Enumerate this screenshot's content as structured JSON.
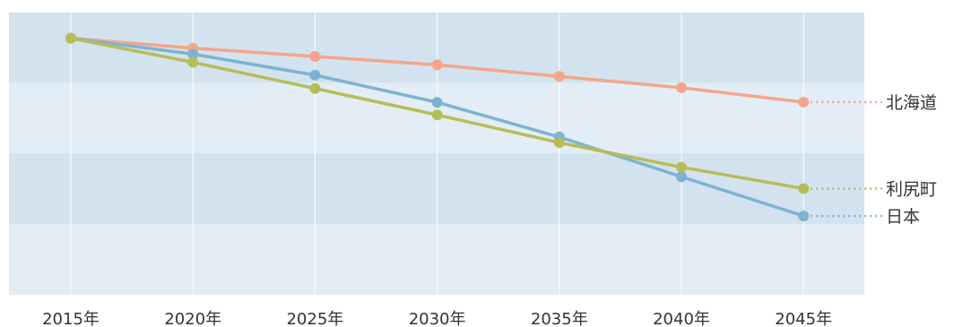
{
  "chart_data": {
    "type": "line",
    "x": [
      "2015年",
      "2020年",
      "2025年",
      "2030年",
      "2035年",
      "2040年",
      "2045年"
    ],
    "series": [
      {
        "name": "北海道",
        "values": [
          100,
          96.1,
          92.9,
          89.6,
          85.1,
          80.7,
          75.1
        ],
        "color": "#f5a58a"
      },
      {
        "name": "利尻町",
        "values": [
          100,
          90.6,
          80.4,
          70.1,
          59.3,
          49.7,
          41.4
        ],
        "color": "#b8bc56"
      },
      {
        "name": "日本",
        "values": [
          100,
          93.8,
          85.6,
          75.0,
          61.5,
          46.0,
          30.7
        ],
        "color": "#7db3d1"
      }
    ],
    "ylim": [
      0,
      110
    ],
    "grid": true,
    "legend": "right-end labels",
    "band_colors": [
      "#d2e3ef",
      "#e2edf6"
    ],
    "gridline_color": "#ffffff"
  }
}
